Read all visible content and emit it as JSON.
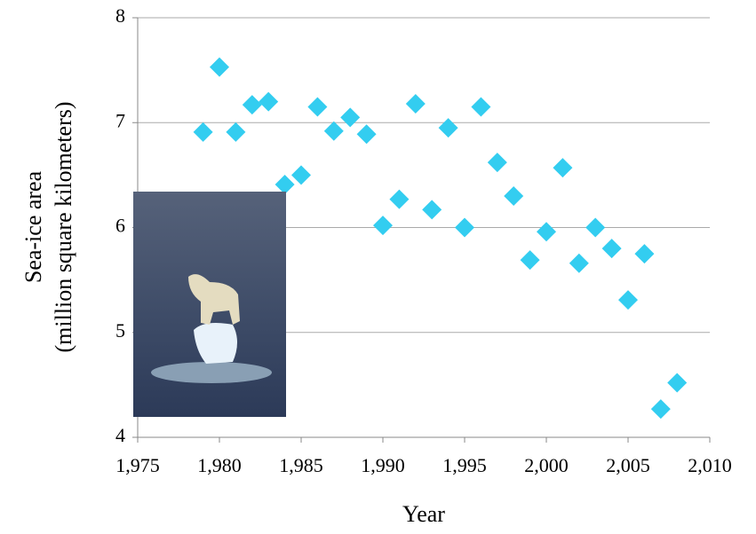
{
  "chart_data": {
    "type": "scatter",
    "xlabel": "Year",
    "ylabel": [
      "Sea-ice area",
      "(million square kilometers)"
    ],
    "x": [
      1979,
      1980,
      1981,
      1982,
      1983,
      1984,
      1985,
      1986,
      1987,
      1988,
      1989,
      1990,
      1991,
      1992,
      1993,
      1994,
      1995,
      1996,
      1997,
      1998,
      1999,
      2000,
      2001,
      2002,
      2003,
      2004,
      2005,
      2006,
      2007,
      2008
    ],
    "series": [
      {
        "color": "#33cdf0",
        "values": [
          6.91,
          7.53,
          6.91,
          7.17,
          7.2,
          6.41,
          6.5,
          7.15,
          6.92,
          7.05,
          6.89,
          6.02,
          6.27,
          7.18,
          6.17,
          6.95,
          6.0,
          7.15,
          6.62,
          6.3,
          5.69,
          5.96,
          6.57,
          5.66,
          6.0,
          5.8,
          5.31,
          5.75,
          4.27,
          4.52
        ]
      }
    ],
    "xlim": [
      1975,
      2010
    ],
    "xticks": [
      {
        "value": 1975,
        "label": "1,975"
      },
      {
        "value": 1980,
        "label": "1,980"
      },
      {
        "value": 1985,
        "label": "1,985"
      },
      {
        "value": 1990,
        "label": "1,990"
      },
      {
        "value": 1995,
        "label": "1,995"
      },
      {
        "value": 2000,
        "label": "2,000"
      },
      {
        "value": 2005,
        "label": "2,005"
      },
      {
        "value": 2010,
        "label": "2,010"
      }
    ],
    "ylim": [
      4,
      8
    ],
    "yticks": [
      4,
      5,
      6,
      7,
      8
    ],
    "grid": true
  }
}
